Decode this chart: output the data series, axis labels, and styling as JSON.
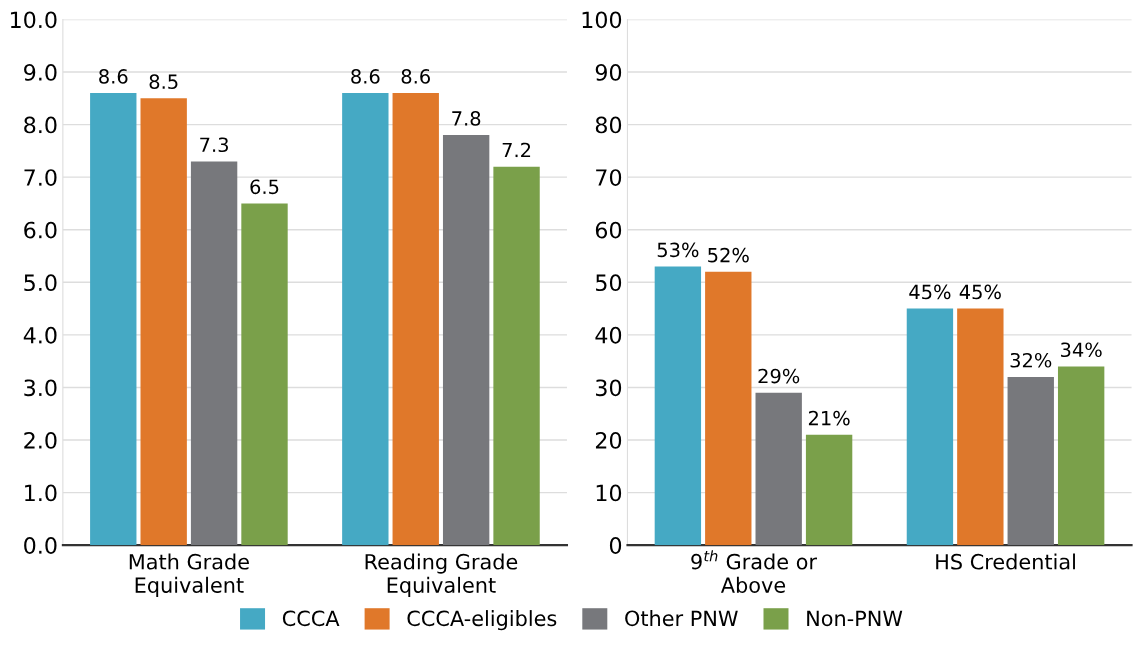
{
  "chart_data": [
    {
      "type": "bar",
      "categories": [
        "Math Grade\nEquivalent",
        "Reading Grade\nEquivalent"
      ],
      "series": [
        {
          "name": "CCCA",
          "color": "#45a9c4",
          "values": [
            8.6,
            8.6
          ]
        },
        {
          "name": "CCCA-eligibles",
          "color": "#e0782a",
          "values": [
            8.5,
            8.6
          ]
        },
        {
          "name": "Other PNW",
          "color": "#77787c",
          "values": [
            7.3,
            7.8
          ]
        },
        {
          "name": "Non-PNW",
          "color": "#7aa04a",
          "values": [
            6.5,
            7.2
          ]
        }
      ],
      "ylim": [
        0,
        10
      ],
      "yticks": [
        {
          "value": 0,
          "label": "0.0"
        },
        {
          "value": 1,
          "label": "1.0"
        },
        {
          "value": 2,
          "label": "2.0"
        },
        {
          "value": 3,
          "label": "3.0"
        },
        {
          "value": 4,
          "label": "4.0"
        },
        {
          "value": 5,
          "label": "5.0"
        },
        {
          "value": 6,
          "label": "6.0"
        },
        {
          "value": 7,
          "label": "7.0"
        },
        {
          "value": 8,
          "label": "8.0"
        },
        {
          "value": 9,
          "label": "9.0"
        },
        {
          "value": 10,
          "label": "10.0"
        }
      ],
      "grid": "y",
      "data_labels": true,
      "legend": "bottom"
    },
    {
      "type": "bar",
      "categories": [
        "9$^{th}$ Grade or\nAbove",
        "HS Credential"
      ],
      "series": [
        {
          "name": "CCCA",
          "color": "#45a9c4",
          "values": [
            53,
            45
          ],
          "value_labels": [
            "53%",
            "45%"
          ]
        },
        {
          "name": "CCCA-eligibles",
          "color": "#e0782a",
          "values": [
            52,
            45
          ],
          "value_labels": [
            "52%",
            "45%"
          ]
        },
        {
          "name": "Other PNW",
          "color": "#77787c",
          "values": [
            29,
            32
          ],
          "value_labels": [
            "29%",
            "32%"
          ]
        },
        {
          "name": "Non-PNW",
          "color": "#7aa04a",
          "values": [
            21,
            34
          ],
          "value_labels": [
            "21%",
            "34%"
          ]
        }
      ],
      "ylim": [
        0,
        100
      ],
      "yticks": [
        0,
        10,
        20,
        30,
        40,
        50,
        60,
        70,
        80,
        90,
        100
      ],
      "grid": "y",
      "legend": "bottom"
    }
  ]
}
